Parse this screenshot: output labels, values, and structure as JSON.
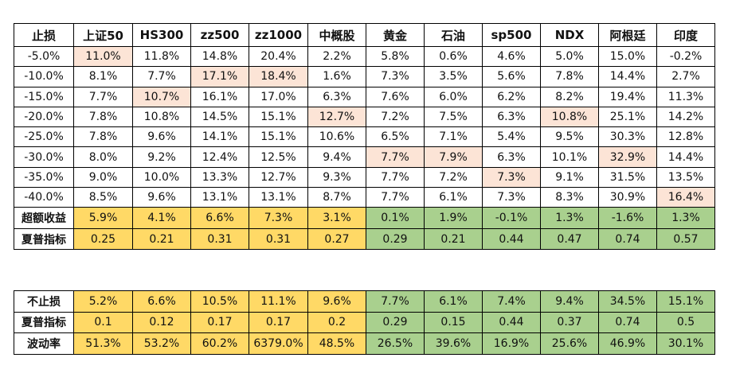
{
  "table1": {
    "headers": [
      "止损",
      "上证50",
      "HS300",
      "zz500",
      "zz1000",
      "中概股",
      "黄金",
      "石油",
      "sp500",
      "NDX",
      "阿根廷",
      "印度"
    ],
    "rows": [
      {
        "label": "-5.0%",
        "cells": [
          "11.0%",
          "11.8%",
          "14.8%",
          "20.4%",
          "2.2%",
          "5.8%",
          "0.6%",
          "4.6%",
          "5.0%",
          "15.0%",
          "-0.2%"
        ],
        "hl": [
          0
        ]
      },
      {
        "label": "-10.0%",
        "cells": [
          "8.1%",
          "7.7%",
          "17.1%",
          "18.4%",
          "1.6%",
          "7.3%",
          "3.5%",
          "5.6%",
          "7.8%",
          "14.4%",
          "2.7%"
        ],
        "hl": [
          2,
          3
        ]
      },
      {
        "label": "-15.0%",
        "cells": [
          "7.7%",
          "10.7%",
          "16.1%",
          "17.0%",
          "6.3%",
          "7.6%",
          "6.0%",
          "6.2%",
          "8.2%",
          "19.4%",
          "11.3%"
        ],
        "hl": [
          1
        ]
      },
      {
        "label": "-20.0%",
        "cells": [
          "7.8%",
          "10.8%",
          "14.5%",
          "15.1%",
          "12.7%",
          "7.2%",
          "7.5%",
          "6.3%",
          "10.8%",
          "25.1%",
          "14.2%"
        ],
        "hl": [
          4,
          8
        ]
      },
      {
        "label": "-25.0%",
        "cells": [
          "7.8%",
          "9.6%",
          "14.1%",
          "15.1%",
          "10.6%",
          "6.5%",
          "7.1%",
          "5.4%",
          "9.5%",
          "30.3%",
          "12.8%"
        ],
        "hl": []
      },
      {
        "label": "-30.0%",
        "cells": [
          "8.0%",
          "9.2%",
          "12.4%",
          "12.5%",
          "9.4%",
          "7.7%",
          "7.9%",
          "6.3%",
          "10.1%",
          "32.9%",
          "14.4%"
        ],
        "hl": [
          5,
          6,
          9
        ]
      },
      {
        "label": "-35.0%",
        "cells": [
          "9.0%",
          "10.0%",
          "13.3%",
          "12.7%",
          "9.3%",
          "7.7%",
          "7.2%",
          "7.3%",
          "9.1%",
          "31.5%",
          "13.5%"
        ],
        "hl": [
          7
        ]
      },
      {
        "label": "-40.0%",
        "cells": [
          "8.5%",
          "9.6%",
          "13.1%",
          "13.1%",
          "8.7%",
          "7.7%",
          "6.1%",
          "7.3%",
          "8.3%",
          "30.9%",
          "16.4%"
        ],
        "hl": [
          10
        ]
      }
    ],
    "summary": [
      {
        "label": "超额收益",
        "cells": [
          "5.9%",
          "4.1%",
          "6.6%",
          "7.3%",
          "3.1%",
          "0.1%",
          "1.9%",
          "-0.1%",
          "1.3%",
          "-1.6%",
          "1.3%"
        ]
      },
      {
        "label": "夏普指标",
        "cells": [
          "0.25",
          "0.21",
          "0.31",
          "0.31",
          "0.27",
          "0.29",
          "0.21",
          "0.44",
          "0.47",
          "0.74",
          "0.57"
        ]
      }
    ]
  },
  "table2": {
    "rows": [
      {
        "label": "不止损",
        "cells": [
          "5.2%",
          "6.6%",
          "10.5%",
          "11.1%",
          "9.6%",
          "7.7%",
          "6.1%",
          "7.4%",
          "9.4%",
          "34.5%",
          "15.1%"
        ]
      },
      {
        "label": "夏普指标",
        "cells": [
          "0.1",
          "0.12",
          "0.17",
          "0.17",
          "0.2",
          "0.29",
          "0.15",
          "0.44",
          "0.37",
          "0.74",
          "0.5"
        ]
      },
      {
        "label": "波动率",
        "cells": [
          "51.3%",
          "53.2%",
          "60.2%",
          "6379.0%",
          "48.5%",
          "26.5%",
          "39.6%",
          "16.9%",
          "25.6%",
          "46.9%",
          "30.1%"
        ]
      }
    ]
  },
  "colors": {
    "highlight": "#fce4d6",
    "yellow": "#ffd966",
    "green": "#a9d08e",
    "border": "#000000"
  }
}
